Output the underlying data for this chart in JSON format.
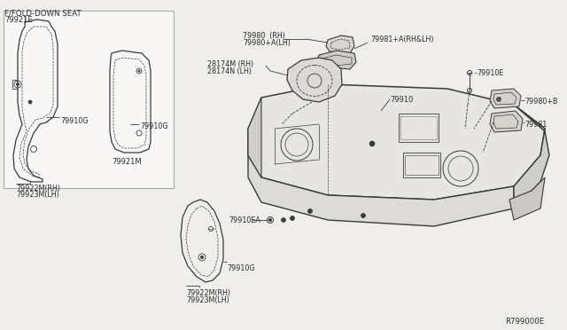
{
  "bg_color": "#f0eeeb",
  "line_color": "#3a3a3a",
  "text_color": "#2a2a2a",
  "diagram_id": "R799000E",
  "labels": {
    "fold_down": "F/FOLD-DOWN SEAT",
    "l_79921E": "79921E",
    "l_79910G_1": "79910G",
    "l_79910G_2": "79910G",
    "l_79922M": "79922M(RH)",
    "l_79923M": "79923M(LH)",
    "l_79921M": "79921M",
    "l_79980_RH": "79980  (RH)",
    "l_79980A_LH": "79980+A(LH)",
    "l_79981A": "79981+A(RH&LH)",
    "l_28174M": "28174M (RH)",
    "l_28174N": "28174N (LH)",
    "l_79910": "79910",
    "l_79910E": "79910E",
    "l_79980B": "79980+B",
    "l_79981": "79981",
    "l_79910EA": "79910EA",
    "l_79910G_r": "79910G",
    "l_79922M_r": "79922M(RH)",
    "l_79923M_r": "79923M(LH)"
  }
}
